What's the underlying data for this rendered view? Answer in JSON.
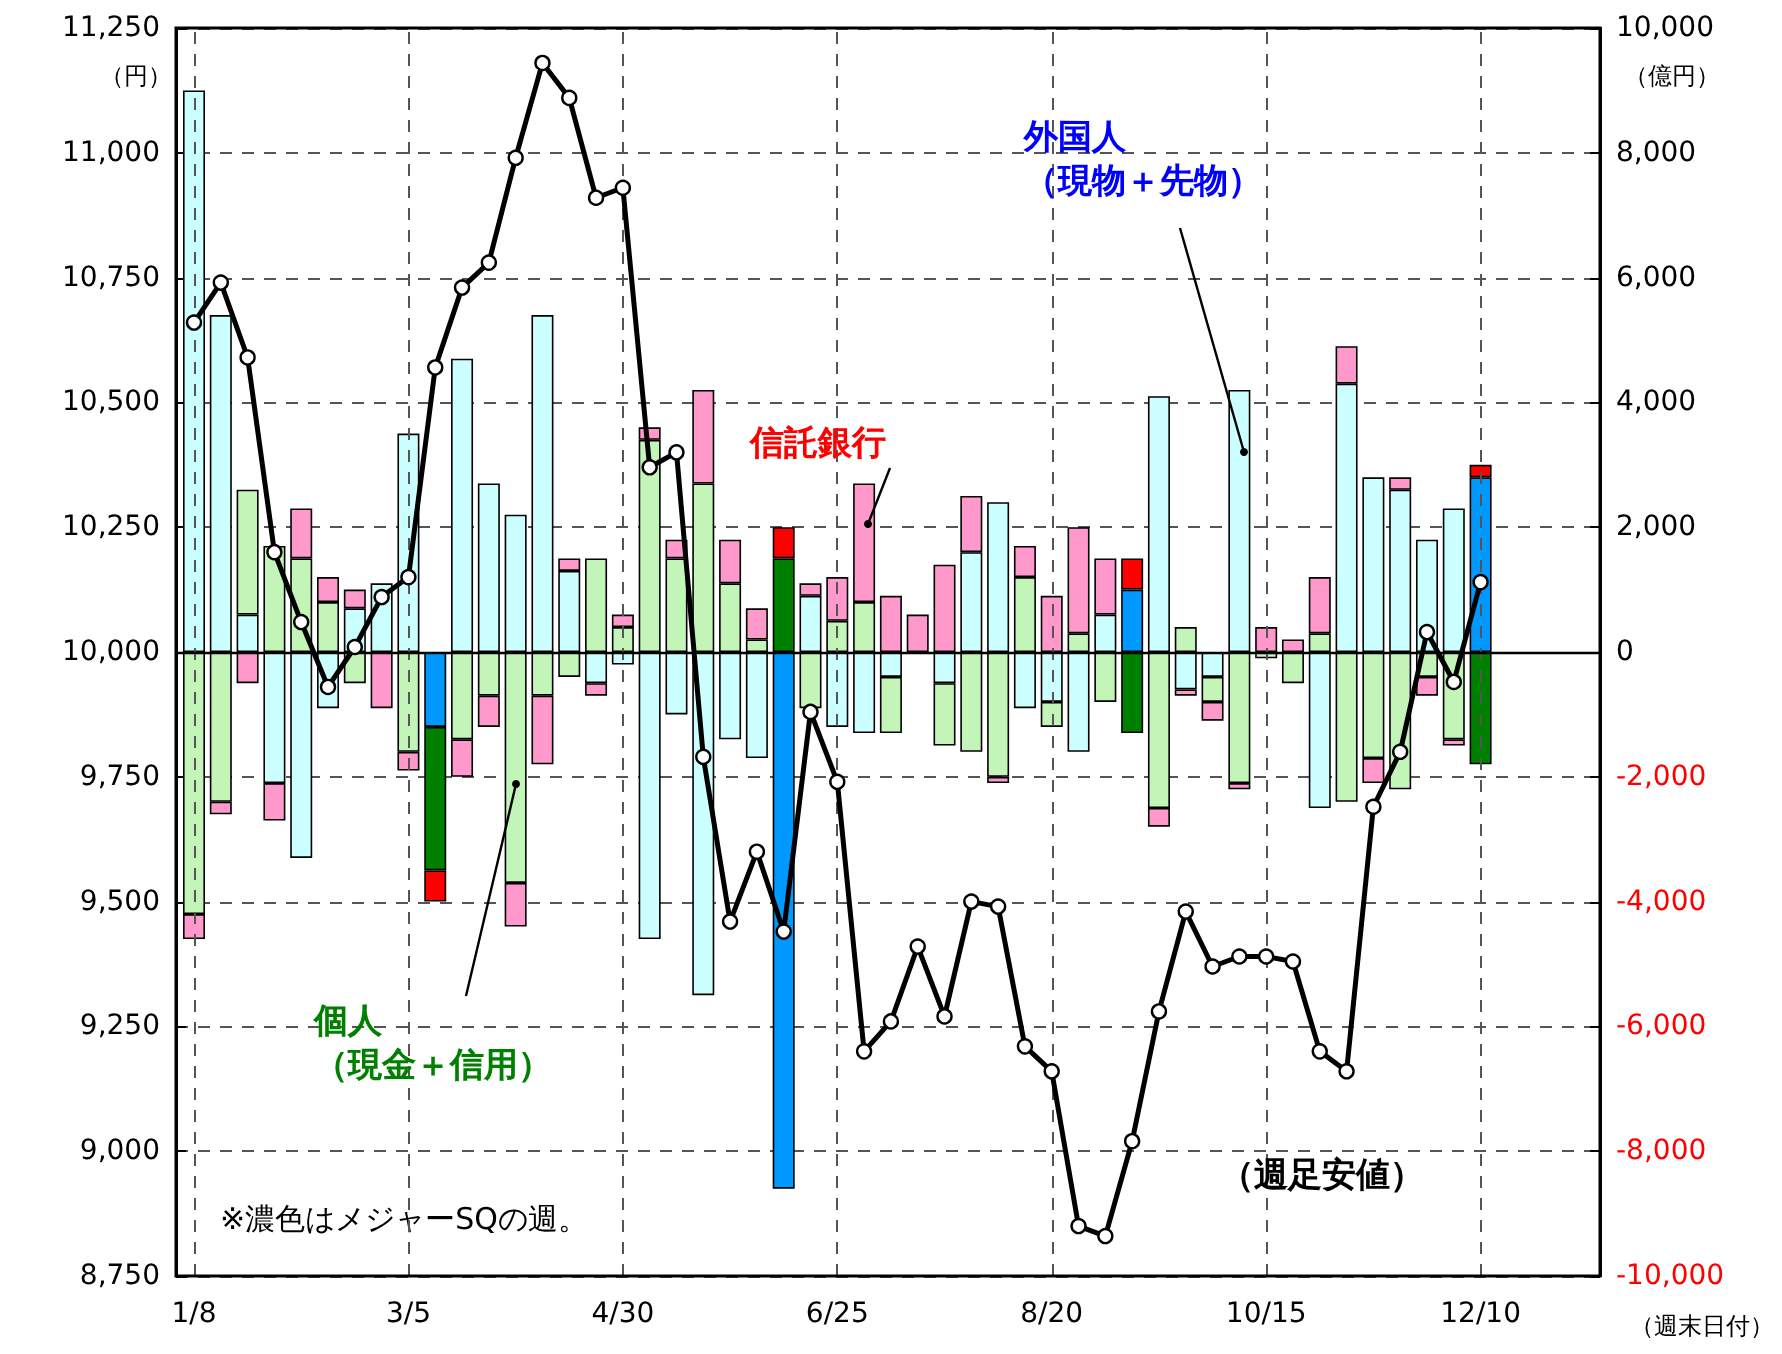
{
  "chart_data": {
    "type": "bar",
    "stacked": true,
    "xlabel": "（週末日付）",
    "ylabel": "（円）",
    "y2label": "（億円）",
    "categories": [
      "1/8",
      null,
      null,
      null,
      null,
      null,
      null,
      null,
      "3/5",
      null,
      null,
      null,
      null,
      null,
      null,
      null,
      "4/30",
      null,
      null,
      null,
      null,
      null,
      null,
      null,
      "6/25",
      null,
      null,
      null,
      null,
      null,
      null,
      null,
      "8/20",
      null,
      null,
      null,
      null,
      null,
      null,
      null,
      "10/15",
      null,
      null,
      null,
      null,
      null,
      null,
      null,
      "12/10"
    ],
    "series": [
      {
        "name": "外国人（現物＋先物）",
        "axis": "y2",
        "colors": [
          "#ccffff",
          "#ccffff",
          "#ccffff",
          "#ccffff",
          "#ccffff",
          "#ccffff",
          "#ccffff",
          "#ccffff",
          "#ccffff",
          "#0099ff",
          "#ccffff",
          "#ccffff",
          "#ccffff",
          "#ccffff",
          "#ccffff",
          "#ccffff",
          "#ccffff",
          "#ccffff",
          "#ccffff",
          "#ccffff",
          "#ccffff",
          "#ccffff",
          "#0099ff",
          "#ccffff",
          "#ccffff",
          "#ccffff",
          "#ccffff",
          "#ccffff",
          "#ccffff",
          "#ccffff",
          "#ccffff",
          "#ccffff",
          "#ccffff",
          "#ccffff",
          "#ccffff",
          "#0099ff",
          "#ccffff",
          "#ccffff",
          "#ccffff",
          "#ccffff",
          "#ccffff",
          "#ccffff",
          "#ccffff",
          "#ccffff",
          "#ccffff",
          "#ccffff",
          "#ccffff",
          "#ccffff",
          "#0099ff"
        ],
        "values": [
          9000,
          5400,
          600,
          -2100,
          -3300,
          -900,
          700,
          1100,
          3500,
          -1200,
          4700,
          2700,
          2200,
          5400,
          1300,
          -500,
          -200,
          -4600,
          -1000,
          -5500,
          -1400,
          -1700,
          -8600,
          900,
          -1200,
          -1300,
          -400,
          null,
          -500,
          1600,
          2400,
          -900,
          -800,
          -1600,
          600,
          1000,
          4100,
          -600,
          -400,
          4200,
          null,
          null,
          -2500,
          4300,
          2800,
          2600,
          1800,
          2300,
          2800
        ]
      },
      {
        "name": "個人（現金＋信用）",
        "axis": "y2",
        "colors": [
          "#c4f5b8",
          "#c4f5b8",
          "#c4f5b8",
          "#c4f5b8",
          "#c4f5b8",
          "#c4f5b8",
          "#c4f5b8",
          "#c4f5b8",
          "#c4f5b8",
          "#008000",
          "#c4f5b8",
          "#c4f5b8",
          "#c4f5b8",
          "#c4f5b8",
          "#c4f5b8",
          "#c4f5b8",
          "#c4f5b8",
          "#c4f5b8",
          "#c4f5b8",
          "#c4f5b8",
          "#c4f5b8",
          "#c4f5b8",
          "#008000",
          "#c4f5b8",
          "#c4f5b8",
          "#c4f5b8",
          "#c4f5b8",
          "#c4f5b8",
          "#c4f5b8",
          "#c4f5b8",
          "#c4f5b8",
          "#c4f5b8",
          "#c4f5b8",
          "#c4f5b8",
          "#c4f5b8",
          "#008000",
          "#c4f5b8",
          "#c4f5b8",
          "#c4f5b8",
          "#c4f5b8",
          "#c4f5b8",
          "#c4f5b8",
          "#c4f5b8",
          "#c4f5b8",
          "#c4f5b8",
          "#c4f5b8",
          "#c4f5b8",
          "#c4f5b8",
          "#008000"
        ],
        "values": [
          -4200,
          -2400,
          2000,
          1700,
          1500,
          800,
          -500,
          null,
          -1600,
          -2300,
          -1400,
          -700,
          -3700,
          -700,
          -400,
          1500,
          400,
          3400,
          1500,
          2700,
          1100,
          200,
          1500,
          -900,
          500,
          800,
          -900,
          null,
          -1000,
          -1600,
          -2000,
          1200,
          -400,
          300,
          -800,
          -1300,
          -2500,
          400,
          -400,
          -2100,
          -100,
          -500,
          300,
          -2400,
          -1700,
          -2200,
          -400,
          -1400,
          -1800
        ]
      },
      {
        "name": "信託銀行",
        "axis": "y2",
        "colors": [
          "#ff99cc",
          "#ff99cc",
          "#ff99cc",
          "#ff99cc",
          "#ff99cc",
          "#ff99cc",
          "#ff99cc",
          "#ff99cc",
          "#ff99cc",
          "#ff0000",
          "#ff99cc",
          "#ff99cc",
          "#ff99cc",
          "#ff99cc",
          "#ff99cc",
          "#ff99cc",
          "#ff99cc",
          "#ff99cc",
          "#ff99cc",
          "#ff99cc",
          "#ff99cc",
          "#ff99cc",
          "#ff0000",
          "#ff99cc",
          "#ff99cc",
          "#ff99cc",
          "#ff99cc",
          "#ff99cc",
          "#ff99cc",
          "#ff99cc",
          "#ff99cc",
          "#ff99cc",
          "#ff99cc",
          "#ff99cc",
          "#ff99cc",
          "#ff0000",
          "#ff99cc",
          "#ff99cc",
          "#ff99cc",
          "#ff99cc",
          "#ff99cc",
          "#ff99cc",
          "#ff99cc",
          "#ff99cc",
          "#ff99cc",
          "#ff99cc",
          "#ff99cc",
          "#ff99cc",
          "#ff0000"
        ],
        "values": [
          -400,
          -200,
          -500,
          -600,
          800,
          400,
          300,
          -900,
          -300,
          -500,
          -600,
          -500,
          -700,
          -1100,
          200,
          -200,
          200,
          200,
          300,
          1500,
          700,
          500,
          500,
          200,
          700,
          1900,
          900,
          600,
          1400,
          900,
          -100,
          500,
          900,
          1700,
          900,
          500,
          -300,
          -100,
          -300,
          -100,
          400,
          200,
          900,
          600,
          -400,
          200,
          -300,
          -100,
          200
        ]
      },
      {
        "name": "（週足安値）",
        "type": "line",
        "color": "#000000",
        "marker": "circle",
        "line_style": "solid",
        "values": [
          10660,
          10740,
          10590,
          10200,
          10060,
          9930,
          10010,
          10110,
          10150,
          10570,
          10730,
          10780,
          10990,
          11180,
          11110,
          10910,
          10930,
          10370,
          10400,
          9790,
          9460,
          9600,
          9440,
          9880,
          9740,
          9200,
          9260,
          9410,
          9270,
          9500,
          9490,
          9210,
          9160,
          8850,
          8830,
          9020,
          9280,
          9480,
          9370,
          9390,
          9390,
          9380,
          9200,
          9160,
          9690,
          9800,
          10040,
          9940,
          10140
        ]
      }
    ],
    "ylim": [
      8750,
      11250
    ],
    "yticks": [
      {
        "value": 8750,
        "label": "8,750"
      },
      {
        "value": 9000,
        "label": "9,000"
      },
      {
        "value": 9250,
        "label": "9,250"
      },
      {
        "value": 9500,
        "label": "9,500"
      },
      {
        "value": 9750,
        "label": "9,750"
      },
      {
        "value": 10000,
        "label": "10,000"
      },
      {
        "value": 10250,
        "label": "10,250"
      },
      {
        "value": 10500,
        "label": "10,500"
      },
      {
        "value": 10750,
        "label": "10,750"
      },
      {
        "value": 11000,
        "label": "11,000"
      },
      {
        "value": 11250,
        "label": "11,250"
      }
    ],
    "y2lim": [
      -10000,
      10000
    ],
    "y2ticks": [
      {
        "value": -10000,
        "label": "-10,000"
      },
      {
        "value": -8000,
        "label": "-8,000"
      },
      {
        "value": -6000,
        "label": "-6,000"
      },
      {
        "value": -4000,
        "label": "-4,000"
      },
      {
        "value": -2000,
        "label": "-2,000"
      },
      0,
      {
        "value": 2000,
        "label": "2,000"
      },
      {
        "value": 4000,
        "label": "4,000"
      },
      {
        "value": 6000,
        "label": "6,000"
      },
      {
        "value": 8000,
        "label": "8,000"
      },
      {
        "value": 10000,
        "label": "10,000"
      }
    ],
    "annotations": [
      "※濃色はメジャーSQの週。"
    ],
    "grid": true,
    "legend": false
  }
}
